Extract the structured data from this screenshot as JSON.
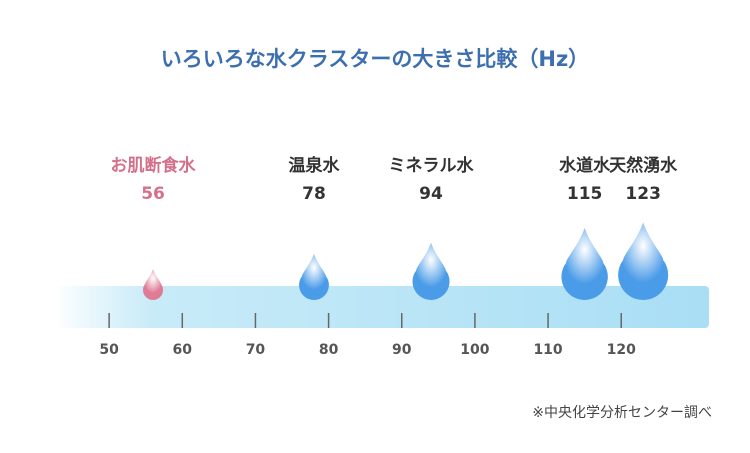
{
  "chart_data": {
    "type": "drop",
    "title": "いろいろな水クラスターの大きさ比較（Hz）",
    "categories": [
      "お肌断食水",
      "温泉水",
      "ミネラル水",
      "水道水",
      "天然湧水"
    ],
    "values": [
      56,
      78,
      94,
      115,
      123
    ],
    "label_colors": [
      "#d4708a",
      "#333333",
      "#333333",
      "#333333",
      "#333333"
    ],
    "drop_colors": [
      "#e07b96",
      "#4a9be8",
      "#4a9be8",
      "#4a9be8",
      "#4a9be8"
    ],
    "xlim": [
      42.6,
      132
    ],
    "xticks": [
      50,
      60,
      70,
      80,
      90,
      100,
      110,
      120
    ],
    "note": "※中央化学分析センター調べ"
  }
}
